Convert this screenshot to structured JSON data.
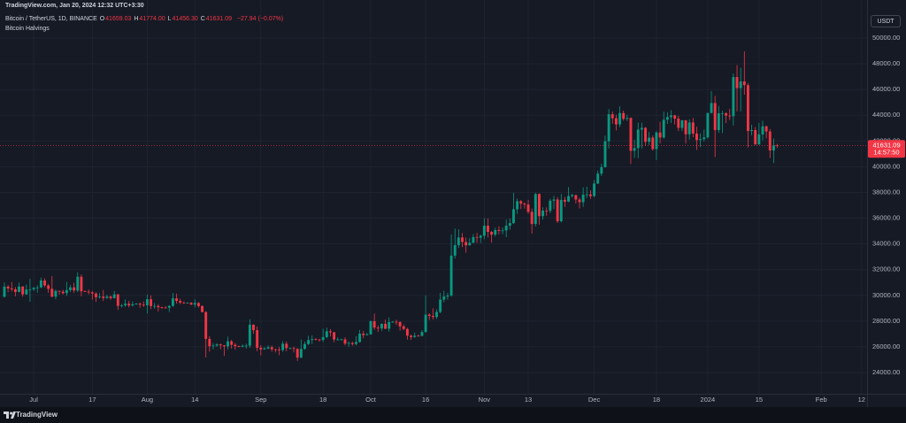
{
  "header": {
    "source": "TradingView.com, Jan 20, 2024 12:32 UTC+3:30",
    "symbol": "Bitcoin / TetherUS, 1D, BINANCE",
    "ohlc": [
      {
        "label": "O",
        "value": "41659.03"
      },
      {
        "label": "H",
        "value": "41774.00"
      },
      {
        "label": "L",
        "value": "41456.30"
      },
      {
        "label": "C",
        "value": "41631.09"
      }
    ],
    "change": "−27.94 (−0.07%)",
    "indicator": "Bitcoin Halvings"
  },
  "currency": "USDT",
  "countdown": "14:57:50",
  "footer": "TradingView",
  "chart_data": {
    "type": "candlestick",
    "up_color": "#089981",
    "down_color": "#f23645",
    "grid": true,
    "open": [
      29890,
      30680,
      30540,
      30470,
      30270,
      30690,
      30080,
      30450,
      30470,
      30590,
      30620,
      31160,
      30770,
      30510,
      29900,
      30350,
      30290,
      30170,
      30410,
      30620,
      30380,
      31450,
      30320,
      30290,
      30230,
      30140,
      29860,
      29910,
      29800,
      29910,
      29790,
      30080,
      29180,
      29230,
      29350,
      29220,
      29310,
      29350,
      29280,
      29230,
      29700,
      29170,
      29180,
      29080,
      29050,
      29040,
      29180,
      29770,
      29570,
      29440,
      29400,
      29420,
      29280,
      29410,
      29170,
      28700,
      26620,
      26050,
      26100,
      26190,
      26120,
      26040,
      26430,
      26160,
      26050,
      26010,
      26090,
      26100,
      27720,
      27300,
      25930,
      25800,
      25870,
      25970,
      25810,
      25780,
      25750,
      26240,
      25900,
      25900,
      25840,
      25160,
      25840,
      26220,
      26530,
      26600,
      26570,
      26530,
      26760,
      27210,
      27130,
      26570,
      26580,
      26580,
      26250,
      26300,
      26220,
      26370,
      27020,
      26910,
      26970,
      27990,
      27500,
      27430,
      27790,
      27410,
      27930,
      27950,
      27920,
      27590,
      27390,
      26870,
      26760,
      26860,
      26850,
      27150,
      28500,
      28400,
      28320,
      28710,
      29670,
      29910,
      29990,
      33090,
      33900,
      34500,
      34150,
      33890,
      34090,
      34530,
      34480,
      34640,
      35420,
      34940,
      34720,
      35080,
      35010,
      35050,
      35420,
      35620,
      36700,
      37320,
      37130,
      37060,
      36490,
      35550,
      37880,
      36160,
      36590,
      36570,
      37360,
      37450,
      35760,
      37420,
      37290,
      37720,
      37800,
      37450,
      37240,
      37830,
      37850,
      37720,
      38690,
      39460,
      39970,
      41980,
      44080,
      43770,
      43290,
      44170,
      43720,
      43790,
      41240,
      41450,
      42890,
      43020,
      41940,
      42260,
      41370,
      42660,
      42270,
      43650,
      43860,
      43990,
      43740,
      43020,
      43610,
      42520,
      43440,
      42580,
      42070,
      42140,
      42280,
      44180,
      44950,
      42850,
      44150,
      44160,
      43970,
      43930,
      46970,
      46110,
      46630,
      46340,
      42780,
      42850,
      41730,
      42510,
      43140,
      42740,
      41260,
      41659.03
    ],
    "high": [
      31000,
      30800,
      31040,
      30650,
      31000,
      30710,
      30840,
      31280,
      30660,
      30780,
      31380,
      31330,
      30880,
      31500,
      30450,
      30380,
      30440,
      31050,
      30800,
      30990,
      31800,
      31630,
      30390,
      30460,
      30340,
      30240,
      30190,
      30420,
      30060,
      29990,
      30350,
      30100,
      29330,
      29690,
      29570,
      29530,
      29410,
      29450,
      29530,
      30050,
      30000,
      29410,
      29310,
      29120,
      29170,
      29240,
      30180,
      30140,
      29740,
      29540,
      29470,
      29480,
      29690,
      29480,
      29220,
      28780,
      26830,
      26290,
      26280,
      26260,
      26140,
      26790,
      26550,
      26310,
      26110,
      26180,
      26250,
      28140,
      27760,
      27580,
      26130,
      25980,
      26120,
      26090,
      25860,
      26000,
      26440,
      26420,
      25940,
      26000,
      25900,
      26560,
      26400,
      26860,
      26890,
      26670,
      26620,
      27410,
      27490,
      27380,
      27160,
      26740,
      26640,
      26740,
      26430,
      26390,
      26830,
      27310,
      27230,
      27090,
      28050,
      28580,
      27670,
      27830,
      28120,
      28290,
      28000,
      28100,
      27990,
      27740,
      27480,
      26950,
      27100,
      26960,
      27290,
      30000,
      28610,
      28990,
      28930,
      30200,
      30360,
      30200,
      34740,
      35200,
      35130,
      34840,
      34500,
      34460,
      34770,
      34860,
      34720,
      35990,
      35980,
      35000,
      35260,
      35380,
      35280,
      35890,
      35980,
      37970,
      37530,
      37410,
      37230,
      37420,
      36750,
      37980,
      37930,
      36850,
      36840,
      37510,
      37750,
      37650,
      37880,
      37650,
      38420,
      37900,
      37820,
      37590,
      38400,
      38450,
      38170,
      38960,
      39700,
      40230,
      42420,
      44490,
      44300,
      44040,
      44700,
      44360,
      44040,
      43840,
      42100,
      43430,
      43420,
      43090,
      42700,
      42430,
      42770,
      43490,
      44280,
      44240,
      44400,
      44030,
      43950,
      43640,
      43640,
      43680,
      43790,
      43110,
      42600,
      42890,
      44190,
      45880,
      45500,
      44730,
      44350,
      44230,
      44490,
      47250,
      47900,
      47700,
      48970,
      46500,
      43260,
      43080,
      43400,
      43580,
      43200,
      42930,
      42200,
      41774
    ],
    "low": [
      29830,
      30250,
      30300,
      29930,
      30230,
      29900,
      30050,
      29500,
      30330,
      30200,
      30560,
      30630,
      30200,
      29850,
      29700,
      30050,
      30070,
      29950,
      30270,
      30200,
      30250,
      29940,
      30250,
      30080,
      29660,
      29500,
      29750,
      29560,
      29720,
      29650,
      29740,
      28860,
      29060,
      29100,
      29070,
      29130,
      29260,
      29030,
      29100,
      28590,
      28930,
      28960,
      28750,
      28950,
      28980,
      28700,
      29110,
      29360,
      29320,
      29340,
      29360,
      29250,
      29070,
      29060,
      28690,
      25170,
      25620,
      25800,
      26000,
      25810,
      25300,
      25800,
      25860,
      25780,
      25970,
      25980,
      25860,
      25920,
      27020,
      25660,
      25330,
      25770,
      25810,
      25620,
      25560,
      25350,
      25610,
      25650,
      25810,
      25570,
      24900,
      25130,
      25770,
      26130,
      26220,
      26480,
      26400,
      26380,
      26670,
      26800,
      26360,
      26480,
      26500,
      26120,
      25990,
      26090,
      26110,
      26340,
      26670,
      26890,
      26950,
      27320,
      27160,
      27220,
      27370,
      27180,
      27860,
      27710,
      27260,
      27290,
      26560,
      26550,
      26700,
      26810,
      26800,
      27110,
      28090,
      28120,
      28160,
      28610,
      29470,
      29670,
      29890,
      32860,
      33690,
      33750,
      33320,
      33880,
      34050,
      34070,
      34070,
      34360,
      34500,
      34100,
      34580,
      34740,
      34750,
      34520,
      35110,
      35540,
      36330,
      36710,
      36750,
      36340,
      34800,
      35360,
      35500,
      35880,
      36190,
      36390,
      36710,
      35630,
      35670,
      36870,
      37250,
      37600,
      37150,
      36760,
      36880,
      37570,
      37500,
      37620,
      38650,
      39280,
      39930,
      41420,
      43340,
      42820,
      43080,
      43580,
      43560,
      40220,
      40680,
      40670,
      41420,
      41660,
      41690,
      41250,
      40530,
      41810,
      42180,
      43330,
      43400,
      43290,
      42770,
      42760,
      41800,
      42100,
      42300,
      41300,
      41520,
      41970,
      42180,
      44150,
      40750,
      42630,
      42620,
      43400,
      43630,
      43200,
      44300,
      44300,
      45600,
      41500,
      42440,
      41720,
      41720,
      42050,
      42200,
      40680,
      40280,
      41456.3
    ],
    "close": [
      30680,
      30540,
      30470,
      30270,
      30690,
      30080,
      30450,
      30470,
      30590,
      30620,
      31160,
      30770,
      30510,
      29900,
      30350,
      30290,
      30170,
      30410,
      30620,
      30380,
      31450,
      30320,
      30290,
      30230,
      30140,
      29860,
      29910,
      29800,
      29910,
      29790,
      30080,
      29180,
      29230,
      29350,
      29220,
      29310,
      29350,
      29280,
      29230,
      29700,
      29170,
      29180,
      29080,
      29050,
      29040,
      29180,
      29770,
      29570,
      29440,
      29400,
      29420,
      29280,
      29410,
      29170,
      28700,
      26620,
      26050,
      26100,
      26190,
      26120,
      26040,
      26430,
      26160,
      26050,
      26010,
      26090,
      26100,
      27720,
      27300,
      25930,
      25800,
      25870,
      25970,
      25810,
      25780,
      25750,
      26240,
      25900,
      25900,
      25840,
      25160,
      25840,
      26220,
      26530,
      26600,
      26570,
      26530,
      26760,
      27210,
      27130,
      26570,
      26580,
      26580,
      26250,
      26300,
      26220,
      26370,
      27020,
      26910,
      26970,
      27990,
      27500,
      27430,
      27790,
      27410,
      27930,
      27950,
      27920,
      27590,
      27390,
      26870,
      26760,
      26860,
      26850,
      27150,
      28500,
      28400,
      28320,
      28710,
      29670,
      29910,
      29990,
      33090,
      33900,
      34500,
      34150,
      33890,
      34090,
      34530,
      34480,
      34640,
      35420,
      34940,
      34720,
      35080,
      35010,
      35050,
      35420,
      35620,
      36700,
      37320,
      37130,
      37060,
      36490,
      35550,
      37880,
      36160,
      36590,
      36570,
      37360,
      37450,
      35760,
      37420,
      37290,
      37720,
      37800,
      37450,
      37240,
      37830,
      37850,
      37720,
      38690,
      39460,
      39970,
      41980,
      44080,
      43770,
      43290,
      44170,
      43720,
      43790,
      41240,
      41450,
      42890,
      43020,
      41940,
      42260,
      41370,
      42660,
      42270,
      43650,
      43860,
      43990,
      43740,
      43020,
      43610,
      42520,
      43440,
      42580,
      42070,
      42140,
      42280,
      44180,
      44950,
      42850,
      44150,
      44160,
      43970,
      43930,
      46970,
      46110,
      46630,
      46340,
      42780,
      42850,
      41730,
      42510,
      43140,
      42740,
      41260,
      41659.03,
      41631.09
    ],
    "xlim": [
      -1.2,
      235.5
    ],
    "ylim": [
      22350,
      52960
    ],
    "xticks": [
      {
        "value": 8,
        "label": "Jul"
      },
      {
        "value": 24,
        "label": "17"
      },
      {
        "value": 39,
        "label": "Aug"
      },
      {
        "value": 52,
        "label": "14"
      },
      {
        "value": 70,
        "label": "Sep"
      },
      {
        "value": 87,
        "label": "18"
      },
      {
        "value": 100,
        "label": "Oct"
      },
      {
        "value": 115,
        "label": "16"
      },
      {
        "value": 131,
        "label": "Nov"
      },
      {
        "value": 143,
        "label": "13"
      },
      {
        "value": 161,
        "label": "Dec"
      },
      {
        "value": 178,
        "label": "18"
      },
      {
        "value": 192,
        "label": "2024"
      },
      {
        "value": 206,
        "label": "15"
      },
      {
        "value": 223,
        "label": "Feb"
      },
      {
        "value": 234,
        "label": "12"
      }
    ],
    "yticks": [
      {
        "value": 24000,
        "label": "24000.00"
      },
      {
        "value": 26000,
        "label": "26000.00"
      },
      {
        "value": 28000,
        "label": "28000.00"
      },
      {
        "value": 30000,
        "label": "30000.00"
      },
      {
        "value": 32000,
        "label": "32000.00"
      },
      {
        "value": 34000,
        "label": "34000.00"
      },
      {
        "value": 36000,
        "label": "36000.00"
      },
      {
        "value": 38000,
        "label": "38000.00"
      },
      {
        "value": 40000,
        "label": "40000.00"
      },
      {
        "value": 42000,
        "label": "42000.00"
      },
      {
        "value": 44000,
        "label": "44000.00"
      },
      {
        "value": 46000,
        "label": "46000.00"
      },
      {
        "value": 48000,
        "label": "48000.00"
      },
      {
        "value": 50000,
        "label": "50000.00"
      }
    ]
  }
}
